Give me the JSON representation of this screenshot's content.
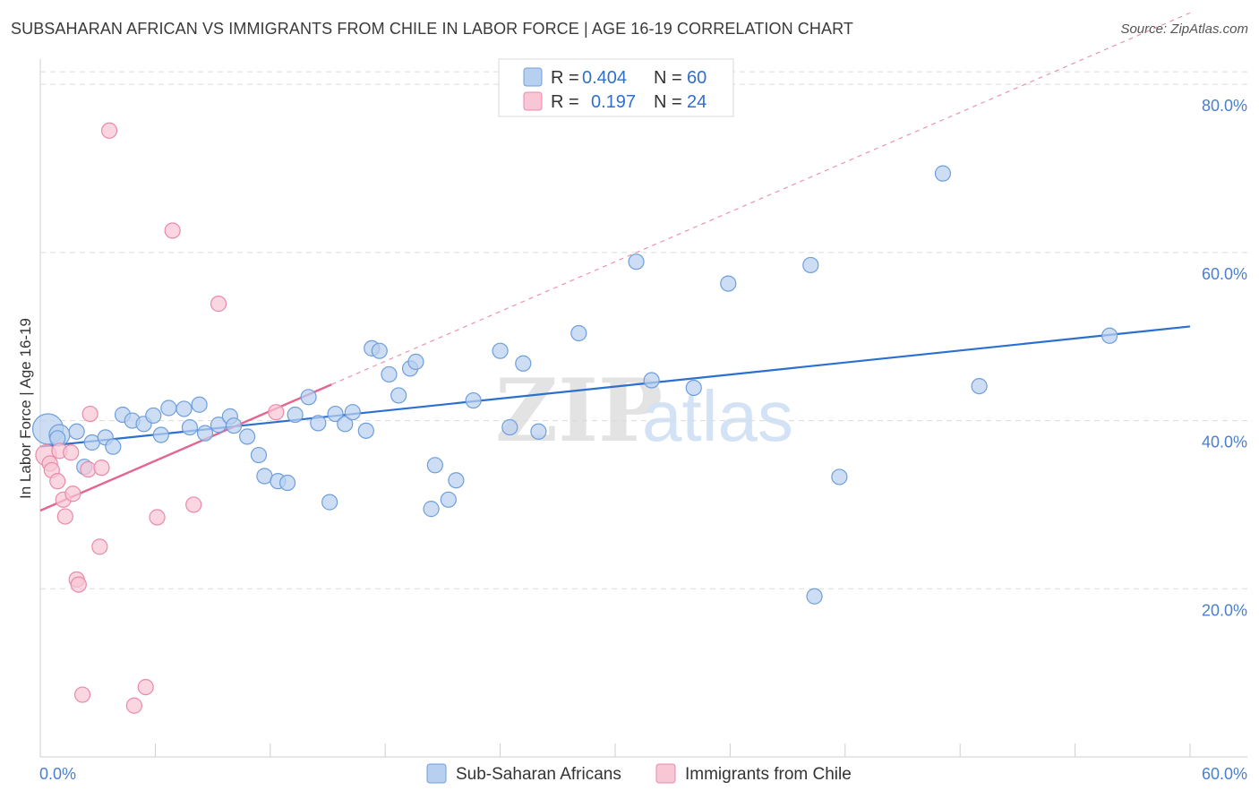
{
  "header": {
    "title": "SUBSAHARAN AFRICAN VS IMMIGRANTS FROM CHILE IN LABOR FORCE | AGE 16-19 CORRELATION CHART",
    "source": "Source: ZipAtlas.com"
  },
  "watermark": {
    "zip": "ZIP",
    "atlas": "atlas"
  },
  "colors": {
    "blue_fill": "#b8d0f0",
    "blue_stroke": "#6e9fdc",
    "blue_line": "#2b6fd0",
    "pink_fill": "#f8c6d5",
    "pink_stroke": "#e98aa9",
    "pink_line": "#e2668f",
    "grid": "#dcdcdc",
    "axis_text": "#4a7fd0"
  },
  "legend": {
    "series": [
      {
        "r_label": "R =",
        "r_value": "0.404",
        "n_label": "N =",
        "n_value": "60"
      },
      {
        "r_label": "R =",
        "r_value": "0.197",
        "n_label": "N =",
        "n_value": "24"
      }
    ]
  },
  "chart_data": {
    "type": "scatter",
    "title": "SUBSAHARAN AFRICAN VS IMMIGRANTS FROM CHILE IN LABOR FORCE | AGE 16-19 CORRELATION CHART",
    "xlabel": "",
    "ylabel": "In Labor Force | Age 16-19",
    "xlim": [
      0,
      60
    ],
    "ylim": [
      0,
      83
    ],
    "x_tick_labels": [
      "0.0%",
      "60.0%"
    ],
    "y_ticks": [
      20,
      40,
      60,
      80
    ],
    "y_tick_labels": [
      "20.0%",
      "40.0%",
      "60.0%",
      "80.0%"
    ],
    "grid": true,
    "legend_position": "top-center",
    "series": [
      {
        "name": "Sub-Saharan Africans",
        "color": "#b8d0f0",
        "trend": {
          "x0": 0,
          "y0": 36.9,
          "x1": 60,
          "y1": 51.2
        },
        "points": [
          [
            0.4,
            39.0,
            "lg"
          ],
          [
            1.0,
            38.3,
            "md"
          ],
          [
            1.9,
            38.7,
            "sm"
          ],
          [
            2.7,
            37.4,
            "sm"
          ],
          [
            3.4,
            38.0,
            "sm"
          ],
          [
            3.8,
            36.9,
            "sm"
          ],
          [
            2.3,
            34.5,
            "sm"
          ],
          [
            4.3,
            40.7,
            "sm"
          ],
          [
            4.8,
            40.0,
            "sm"
          ],
          [
            5.4,
            39.6,
            "sm"
          ],
          [
            5.9,
            40.6,
            "sm"
          ],
          [
            6.3,
            38.3,
            "sm"
          ],
          [
            6.7,
            41.5,
            "sm"
          ],
          [
            7.5,
            41.4,
            "sm"
          ],
          [
            7.8,
            39.2,
            "sm"
          ],
          [
            8.3,
            41.9,
            "sm"
          ],
          [
            8.6,
            38.5,
            "sm"
          ],
          [
            9.3,
            39.5,
            "sm"
          ],
          [
            9.9,
            40.5,
            "sm"
          ],
          [
            10.1,
            39.4,
            "sm"
          ],
          [
            10.8,
            38.1,
            "sm"
          ],
          [
            11.4,
            35.9,
            "sm"
          ],
          [
            11.7,
            33.4,
            "sm"
          ],
          [
            12.4,
            32.8,
            "sm"
          ],
          [
            12.9,
            32.6,
            "sm"
          ],
          [
            13.3,
            40.7,
            "sm"
          ],
          [
            14.0,
            42.8,
            "sm"
          ],
          [
            14.5,
            39.7,
            "sm"
          ],
          [
            15.1,
            30.3,
            "sm"
          ],
          [
            15.4,
            40.8,
            "sm"
          ],
          [
            15.9,
            39.6,
            "sm"
          ],
          [
            16.3,
            41.0,
            "sm"
          ],
          [
            17.0,
            38.8,
            "sm"
          ],
          [
            17.3,
            48.6,
            "sm"
          ],
          [
            17.7,
            48.3,
            "sm"
          ],
          [
            18.2,
            45.5,
            "sm"
          ],
          [
            18.7,
            43.0,
            "sm"
          ],
          [
            19.3,
            46.2,
            "sm"
          ],
          [
            19.6,
            47.0,
            "sm"
          ],
          [
            20.4,
            29.5,
            "sm"
          ],
          [
            20.6,
            34.7,
            "sm"
          ],
          [
            21.3,
            30.6,
            "sm"
          ],
          [
            21.7,
            32.9,
            "sm"
          ],
          [
            22.6,
            42.4,
            "sm"
          ],
          [
            24.0,
            48.3,
            "sm"
          ],
          [
            24.5,
            39.2,
            "sm"
          ],
          [
            25.2,
            46.8,
            "sm"
          ],
          [
            26.0,
            38.7,
            "sm"
          ],
          [
            28.1,
            50.4,
            "sm"
          ],
          [
            31.1,
            58.9,
            "sm"
          ],
          [
            31.9,
            44.8,
            "sm"
          ],
          [
            34.1,
            43.9,
            "sm"
          ],
          [
            35.9,
            56.3,
            "sm"
          ],
          [
            40.2,
            58.5,
            "sm"
          ],
          [
            40.4,
            19.1,
            "sm"
          ],
          [
            41.7,
            33.3,
            "sm"
          ],
          [
            47.1,
            69.4,
            "sm"
          ],
          [
            49.0,
            44.1,
            "sm"
          ],
          [
            55.8,
            50.1,
            "sm"
          ],
          [
            0.9,
            37.9,
            "sm"
          ]
        ]
      },
      {
        "name": "Immigrants from Chile",
        "color": "#f8c6d5",
        "trend": {
          "x0": 0,
          "y0": 29.3,
          "x1": 15.2,
          "y1": 44.3,
          "ext_x1": 60,
          "ext_y1": 88.5
        },
        "points": [
          [
            0.3,
            35.9,
            "md"
          ],
          [
            0.5,
            34.9,
            "sm"
          ],
          [
            0.6,
            34.1,
            "sm"
          ],
          [
            0.9,
            32.8,
            "sm"
          ],
          [
            1.0,
            36.4,
            "sm"
          ],
          [
            1.2,
            30.6,
            "sm"
          ],
          [
            1.3,
            28.6,
            "sm"
          ],
          [
            1.6,
            36.2,
            "sm"
          ],
          [
            1.7,
            31.3,
            "sm"
          ],
          [
            1.9,
            21.1,
            "sm"
          ],
          [
            2.0,
            20.5,
            "sm"
          ],
          [
            2.2,
            7.4,
            "sm"
          ],
          [
            2.5,
            34.2,
            "sm"
          ],
          [
            2.6,
            40.8,
            "sm"
          ],
          [
            3.1,
            25.0,
            "sm"
          ],
          [
            3.2,
            34.4,
            "sm"
          ],
          [
            3.6,
            74.5,
            "sm"
          ],
          [
            4.9,
            6.1,
            "sm"
          ],
          [
            5.5,
            8.3,
            "sm"
          ],
          [
            6.1,
            28.5,
            "sm"
          ],
          [
            6.9,
            62.6,
            "sm"
          ],
          [
            8.0,
            30.0,
            "sm"
          ],
          [
            9.3,
            53.9,
            "sm"
          ],
          [
            12.3,
            41.0,
            "sm"
          ]
        ]
      }
    ]
  }
}
